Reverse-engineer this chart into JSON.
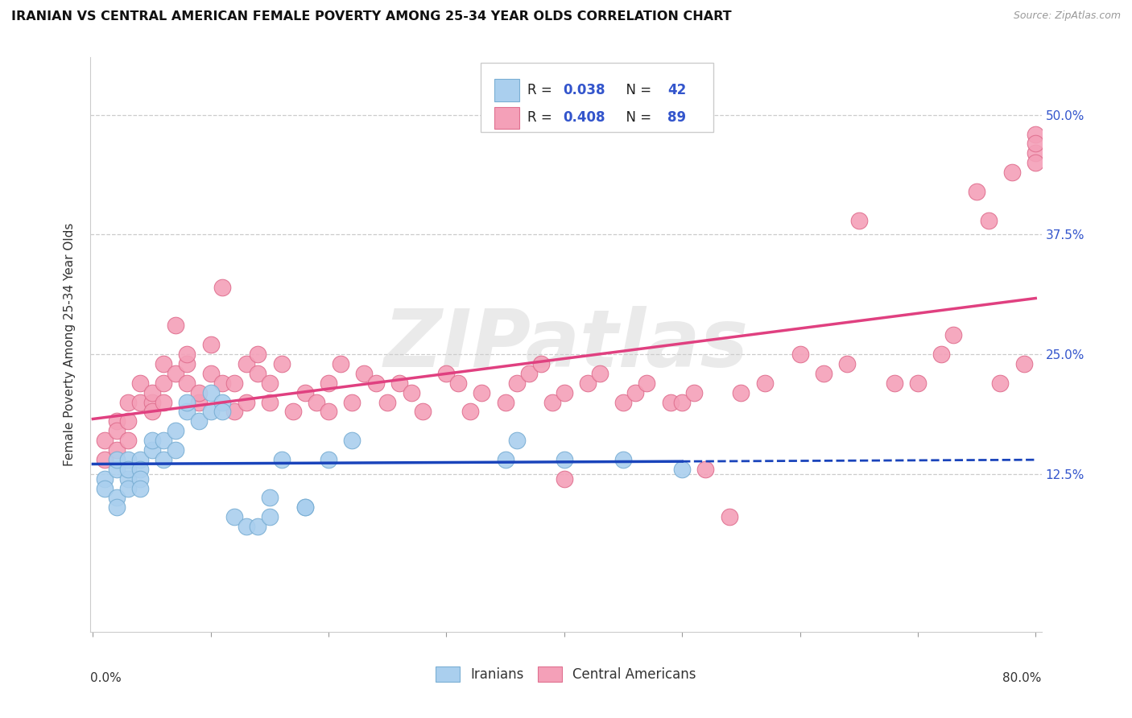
{
  "title": "IRANIAN VS CENTRAL AMERICAN FEMALE POVERTY AMONG 25-34 YEAR OLDS CORRELATION CHART",
  "source": "Source: ZipAtlas.com",
  "ylabel": "Female Poverty Among 25-34 Year Olds",
  "ytick_labels": [
    "50.0%",
    "37.5%",
    "25.0%",
    "12.5%"
  ],
  "ytick_values": [
    0.5,
    0.375,
    0.25,
    0.125
  ],
  "xlim": [
    0.0,
    0.8
  ],
  "ylim": [
    -0.04,
    0.56
  ],
  "iranian_color": "#aacfee",
  "iranian_edge_color": "#7aafd4",
  "central_color": "#f4a0b8",
  "central_edge_color": "#e07090",
  "trend_iranian_solid_color": "#1a44bb",
  "trend_central_color": "#e04080",
  "legend_R_iranian": "0.038",
  "legend_N_iranian": "42",
  "legend_R_central": "0.408",
  "legend_N_central": "89",
  "watermark": "ZIPatlas",
  "watermark_color": "#cccccc",
  "text_color": "#333333",
  "blue_label_color": "#3355cc",
  "grid_color": "#cccccc",
  "iranian_x": [
    0.01,
    0.01,
    0.02,
    0.02,
    0.02,
    0.02,
    0.03,
    0.03,
    0.03,
    0.03,
    0.04,
    0.04,
    0.04,
    0.04,
    0.05,
    0.05,
    0.06,
    0.06,
    0.07,
    0.07,
    0.08,
    0.08,
    0.09,
    0.1,
    0.1,
    0.11,
    0.11,
    0.12,
    0.13,
    0.14,
    0.15,
    0.15,
    0.16,
    0.18,
    0.18,
    0.2,
    0.22,
    0.35,
    0.36,
    0.4,
    0.45,
    0.5
  ],
  "iranian_y": [
    0.12,
    0.11,
    0.13,
    0.1,
    0.09,
    0.14,
    0.14,
    0.12,
    0.11,
    0.13,
    0.14,
    0.13,
    0.12,
    0.11,
    0.15,
    0.16,
    0.14,
    0.16,
    0.15,
    0.17,
    0.19,
    0.2,
    0.18,
    0.19,
    0.21,
    0.2,
    0.19,
    0.08,
    0.07,
    0.07,
    0.08,
    0.1,
    0.14,
    0.09,
    0.09,
    0.14,
    0.16,
    0.14,
    0.16,
    0.14,
    0.14,
    0.13
  ],
  "central_x": [
    0.01,
    0.01,
    0.02,
    0.02,
    0.02,
    0.03,
    0.03,
    0.03,
    0.04,
    0.04,
    0.05,
    0.05,
    0.05,
    0.06,
    0.06,
    0.06,
    0.07,
    0.07,
    0.08,
    0.08,
    0.08,
    0.09,
    0.09,
    0.1,
    0.1,
    0.11,
    0.11,
    0.12,
    0.12,
    0.13,
    0.13,
    0.14,
    0.14,
    0.15,
    0.15,
    0.16,
    0.17,
    0.18,
    0.19,
    0.2,
    0.2,
    0.21,
    0.22,
    0.23,
    0.24,
    0.25,
    0.26,
    0.27,
    0.28,
    0.3,
    0.31,
    0.32,
    0.33,
    0.35,
    0.36,
    0.37,
    0.38,
    0.39,
    0.4,
    0.4,
    0.42,
    0.43,
    0.45,
    0.46,
    0.47,
    0.49,
    0.5,
    0.51,
    0.52,
    0.54,
    0.55,
    0.57,
    0.6,
    0.62,
    0.64,
    0.65,
    0.68,
    0.7,
    0.72,
    0.73,
    0.75,
    0.76,
    0.77,
    0.78,
    0.79,
    0.8,
    0.8,
    0.8,
    0.8
  ],
  "central_y": [
    0.16,
    0.14,
    0.18,
    0.15,
    0.17,
    0.16,
    0.2,
    0.18,
    0.2,
    0.22,
    0.2,
    0.19,
    0.21,
    0.22,
    0.24,
    0.2,
    0.23,
    0.28,
    0.22,
    0.24,
    0.25,
    0.2,
    0.21,
    0.23,
    0.26,
    0.22,
    0.32,
    0.19,
    0.22,
    0.24,
    0.2,
    0.23,
    0.25,
    0.2,
    0.22,
    0.24,
    0.19,
    0.21,
    0.2,
    0.19,
    0.22,
    0.24,
    0.2,
    0.23,
    0.22,
    0.2,
    0.22,
    0.21,
    0.19,
    0.23,
    0.22,
    0.19,
    0.21,
    0.2,
    0.22,
    0.23,
    0.24,
    0.2,
    0.21,
    0.12,
    0.22,
    0.23,
    0.2,
    0.21,
    0.22,
    0.2,
    0.2,
    0.21,
    0.13,
    0.08,
    0.21,
    0.22,
    0.25,
    0.23,
    0.24,
    0.39,
    0.22,
    0.22,
    0.25,
    0.27,
    0.42,
    0.39,
    0.22,
    0.44,
    0.24,
    0.48,
    0.46,
    0.45,
    0.47
  ]
}
